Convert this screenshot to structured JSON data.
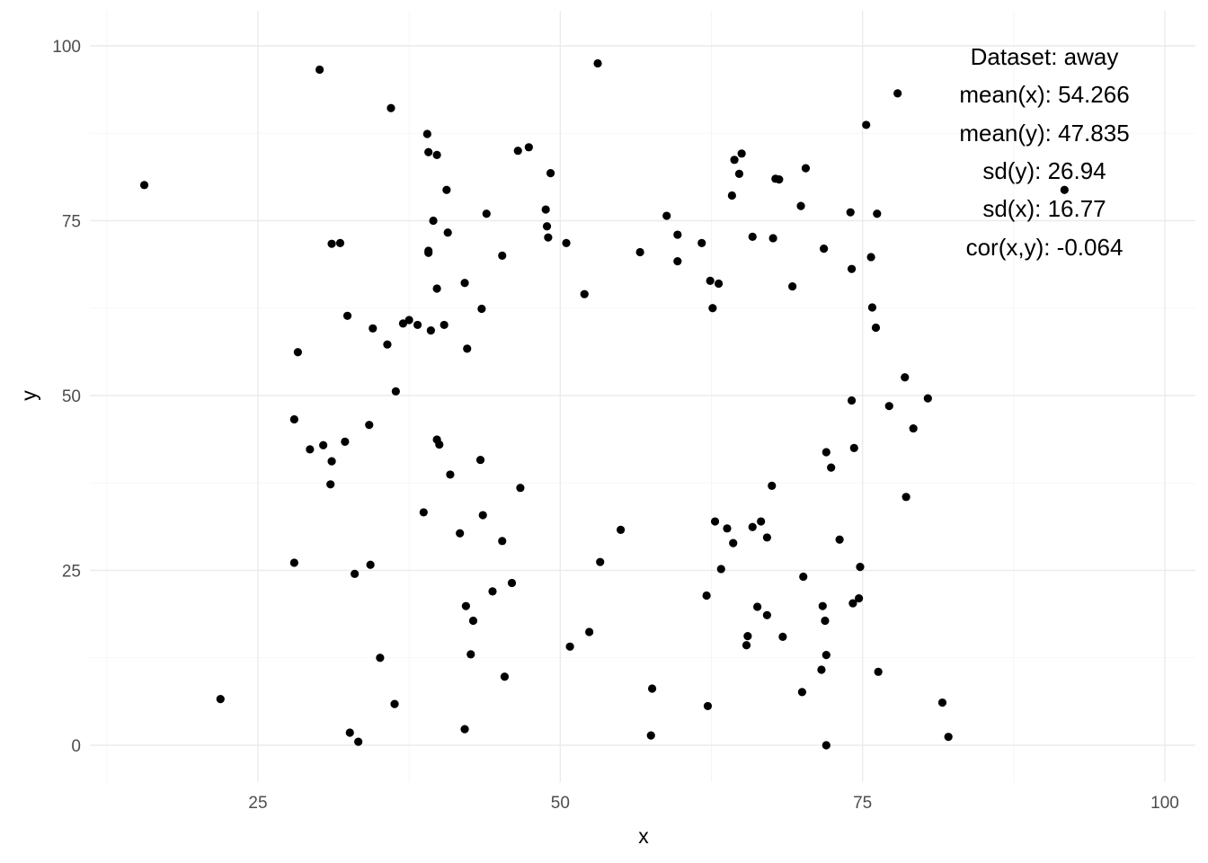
{
  "chart_data": {
    "type": "scatter",
    "title": "",
    "xlabel": "x",
    "ylabel": "y",
    "xlim": [
      12.5,
      103.5
    ],
    "ylim": [
      -4,
      104
    ],
    "x_ticks": [
      25,
      50,
      75,
      100
    ],
    "y_ticks": [
      0,
      25,
      50,
      75,
      100
    ],
    "x_tick_labels": [
      "25",
      "50",
      "75",
      "100"
    ],
    "y_tick_labels": [
      "0",
      "25",
      "50",
      "75",
      "100"
    ],
    "grid": true,
    "legend": "none",
    "point_color": "#000000",
    "annotations": [
      "Dataset: away",
      "mean(x): 54.266",
      "mean(y): 47.835",
      "sd(y): 26.94",
      "sd(x): 16.77",
      "cor(x,y): -0.064"
    ],
    "points": [
      [
        15.6,
        80.1
      ],
      [
        21.9,
        6.6
      ],
      [
        28.0,
        46.6
      ],
      [
        28.0,
        26.1
      ],
      [
        28.3,
        56.2
      ],
      [
        29.3,
        42.3
      ],
      [
        30.1,
        96.6
      ],
      [
        30.4,
        42.9
      ],
      [
        31.0,
        37.3
      ],
      [
        31.1,
        40.6
      ],
      [
        31.1,
        71.7
      ],
      [
        31.8,
        71.8
      ],
      [
        32.2,
        43.4
      ],
      [
        32.4,
        61.4
      ],
      [
        32.6,
        1.8
      ],
      [
        33.0,
        24.5
      ],
      [
        33.3,
        0.5
      ],
      [
        34.2,
        45.8
      ],
      [
        34.3,
        25.8
      ],
      [
        34.5,
        59.6
      ],
      [
        35.1,
        12.5
      ],
      [
        35.7,
        57.3
      ],
      [
        36.0,
        91.1
      ],
      [
        36.3,
        5.9
      ],
      [
        36.4,
        50.6
      ],
      [
        37.0,
        60.3
      ],
      [
        37.5,
        60.8
      ],
      [
        38.2,
        60.1
      ],
      [
        38.7,
        33.3
      ],
      [
        39.0,
        87.4
      ],
      [
        39.1,
        84.8
      ],
      [
        39.1,
        70.7
      ],
      [
        39.1,
        70.4
      ],
      [
        39.3,
        59.3
      ],
      [
        39.5,
        75.0
      ],
      [
        39.8,
        84.4
      ],
      [
        39.8,
        65.3
      ],
      [
        39.8,
        43.7
      ],
      [
        40.0,
        43.0
      ],
      [
        40.4,
        60.1
      ],
      [
        40.6,
        79.4
      ],
      [
        40.7,
        73.3
      ],
      [
        40.9,
        38.7
      ],
      [
        41.7,
        30.3
      ],
      [
        42.1,
        66.1
      ],
      [
        42.1,
        2.3
      ],
      [
        42.2,
        19.9
      ],
      [
        42.3,
        56.7
      ],
      [
        42.6,
        13.0
      ],
      [
        42.8,
        17.8
      ],
      [
        43.4,
        40.8
      ],
      [
        43.5,
        62.4
      ],
      [
        43.6,
        32.9
      ],
      [
        43.9,
        76.0
      ],
      [
        44.4,
        22.0
      ],
      [
        45.2,
        70.0
      ],
      [
        45.2,
        29.2
      ],
      [
        45.4,
        9.8
      ],
      [
        46.0,
        23.2
      ],
      [
        46.5,
        85.0
      ],
      [
        46.7,
        36.8
      ],
      [
        47.4,
        85.5
      ],
      [
        48.8,
        76.6
      ],
      [
        48.9,
        74.2
      ],
      [
        49.0,
        72.6
      ],
      [
        49.2,
        81.8
      ],
      [
        50.5,
        71.8
      ],
      [
        50.8,
        14.1
      ],
      [
        52.0,
        64.5
      ],
      [
        52.4,
        16.2
      ],
      [
        53.1,
        97.5
      ],
      [
        53.3,
        26.2
      ],
      [
        55.0,
        30.8
      ],
      [
        56.6,
        70.5
      ],
      [
        57.5,
        1.4
      ],
      [
        57.6,
        8.1
      ],
      [
        58.8,
        75.7
      ],
      [
        59.7,
        73.0
      ],
      [
        59.7,
        69.2
      ],
      [
        61.7,
        71.8
      ],
      [
        62.1,
        21.4
      ],
      [
        62.2,
        5.6
      ],
      [
        62.4,
        66.4
      ],
      [
        62.6,
        62.5
      ],
      [
        62.8,
        32.0
      ],
      [
        63.1,
        66.0
      ],
      [
        63.3,
        25.2
      ],
      [
        63.8,
        31.0
      ],
      [
        64.2,
        78.6
      ],
      [
        64.3,
        28.9
      ],
      [
        64.4,
        83.7
      ],
      [
        64.8,
        81.7
      ],
      [
        65.0,
        84.6
      ],
      [
        65.4,
        14.3
      ],
      [
        65.5,
        15.6
      ],
      [
        65.9,
        31.2
      ],
      [
        65.9,
        72.7
      ],
      [
        66.3,
        19.8
      ],
      [
        66.6,
        32.0
      ],
      [
        67.1,
        29.7
      ],
      [
        67.1,
        18.6
      ],
      [
        67.5,
        37.1
      ],
      [
        67.6,
        72.5
      ],
      [
        67.8,
        81.0
      ],
      [
        68.1,
        80.9
      ],
      [
        68.4,
        15.5
      ],
      [
        69.2,
        65.6
      ],
      [
        69.9,
        77.1
      ],
      [
        70.0,
        7.6
      ],
      [
        70.1,
        24.1
      ],
      [
        70.3,
        82.5
      ],
      [
        71.6,
        10.8
      ],
      [
        71.7,
        19.9
      ],
      [
        71.8,
        71.0
      ],
      [
        71.9,
        17.8
      ],
      [
        72.0,
        41.9
      ],
      [
        72.0,
        12.9
      ],
      [
        72.0,
        0.0
      ],
      [
        72.4,
        39.7
      ],
      [
        73.1,
        29.4
      ],
      [
        74.0,
        76.2
      ],
      [
        74.1,
        49.3
      ],
      [
        74.1,
        68.1
      ],
      [
        74.2,
        20.3
      ],
      [
        74.3,
        42.5
      ],
      [
        74.7,
        21.0
      ],
      [
        74.8,
        25.5
      ],
      [
        75.3,
        88.7
      ],
      [
        75.7,
        69.8
      ],
      [
        75.8,
        62.6
      ],
      [
        76.1,
        59.7
      ],
      [
        76.2,
        76.0
      ],
      [
        76.3,
        10.5
      ],
      [
        77.2,
        48.5
      ],
      [
        77.9,
        93.2
      ],
      [
        78.5,
        52.6
      ],
      [
        78.6,
        35.5
      ],
      [
        79.2,
        45.3
      ],
      [
        80.4,
        49.6
      ],
      [
        81.6,
        6.1
      ],
      [
        82.1,
        1.2
      ],
      [
        91.7,
        79.4
      ]
    ]
  }
}
